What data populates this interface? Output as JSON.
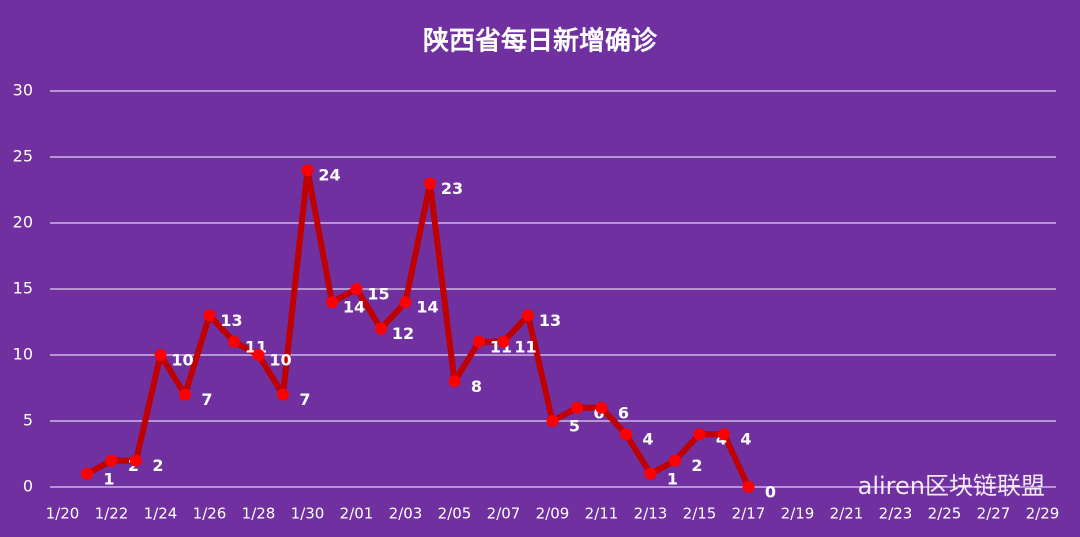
{
  "chart_data": {
    "type": "line",
    "title": "陕西省每日新增确诊",
    "categories": [
      "1/20",
      null,
      "1/22",
      null,
      "1/24",
      null,
      "1/26",
      null,
      "1/28",
      null,
      "1/30",
      null,
      "2/01",
      null,
      "2/03",
      null,
      "2/05",
      null,
      "2/07",
      null,
      "2/09",
      null,
      "2/11",
      null,
      "2/13",
      null,
      "2/15",
      null,
      "2/17",
      null,
      "2/19",
      null,
      "2/21",
      null,
      "2/23",
      null,
      "2/25",
      null,
      "2/27",
      null,
      "2/29"
    ],
    "series": [
      {
        "name": "新增确诊",
        "color": "#c00000",
        "marker_color": "#ff0000",
        "values": [
          null,
          1,
          2,
          2,
          10,
          7,
          13,
          11,
          10,
          7,
          24,
          14,
          15,
          12,
          14,
          23,
          8,
          11,
          11,
          13,
          5,
          6,
          6,
          4,
          1,
          2,
          4,
          4,
          0,
          null,
          null,
          null,
          null,
          null,
          null,
          null,
          null,
          null,
          null,
          null,
          null
        ]
      }
    ],
    "ylim": [
      0,
      30
    ],
    "yticks": [
      0,
      5,
      10,
      15,
      20,
      25,
      30
    ],
    "grid": true,
    "watermark": "aliren区块链联盟"
  }
}
